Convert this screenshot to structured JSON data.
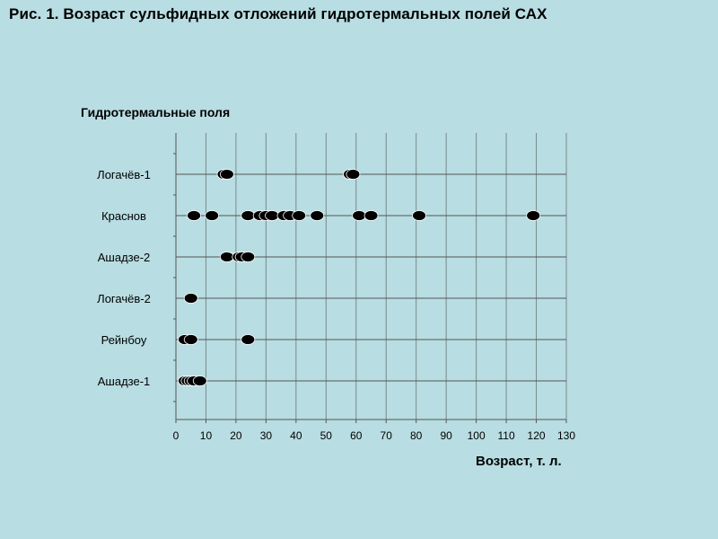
{
  "title": "Рис. 1. Возраст сульфидных отложений гидротермальных полей САХ",
  "chart_data": {
    "type": "scatter",
    "ylabel": "Гидротермальные поля",
    "xlabel": "Возраст, т. л.",
    "xlim": [
      0,
      130
    ],
    "xticks": [
      0,
      10,
      20,
      30,
      40,
      50,
      60,
      70,
      80,
      90,
      100,
      110,
      120,
      130
    ],
    "grid": "vertical-and-row-lines",
    "marker": "filled-ellipse",
    "marker_color": "#000000",
    "categories": [
      "Логачёв-1",
      "Краснов",
      "Ашадзе-2",
      "Логачёв-2",
      "Рейнбоу",
      "Ашадзе-1"
    ],
    "series": [
      {
        "category": "Логачёв-1",
        "x": [
          16,
          17,
          58,
          59
        ]
      },
      {
        "category": "Краснов",
        "x": [
          6,
          12,
          24,
          28,
          30,
          32,
          36,
          38,
          41,
          47,
          61,
          65,
          81,
          119
        ]
      },
      {
        "category": "Ашадзе-2",
        "x": [
          17,
          21,
          22,
          24
        ]
      },
      {
        "category": "Логачёв-2",
        "x": [
          5
        ]
      },
      {
        "category": "Рейнбоу",
        "x": [
          3,
          5,
          24
        ]
      },
      {
        "category": "Ашадзе-1",
        "x": [
          3,
          4,
          5,
          6,
          8
        ]
      }
    ]
  }
}
